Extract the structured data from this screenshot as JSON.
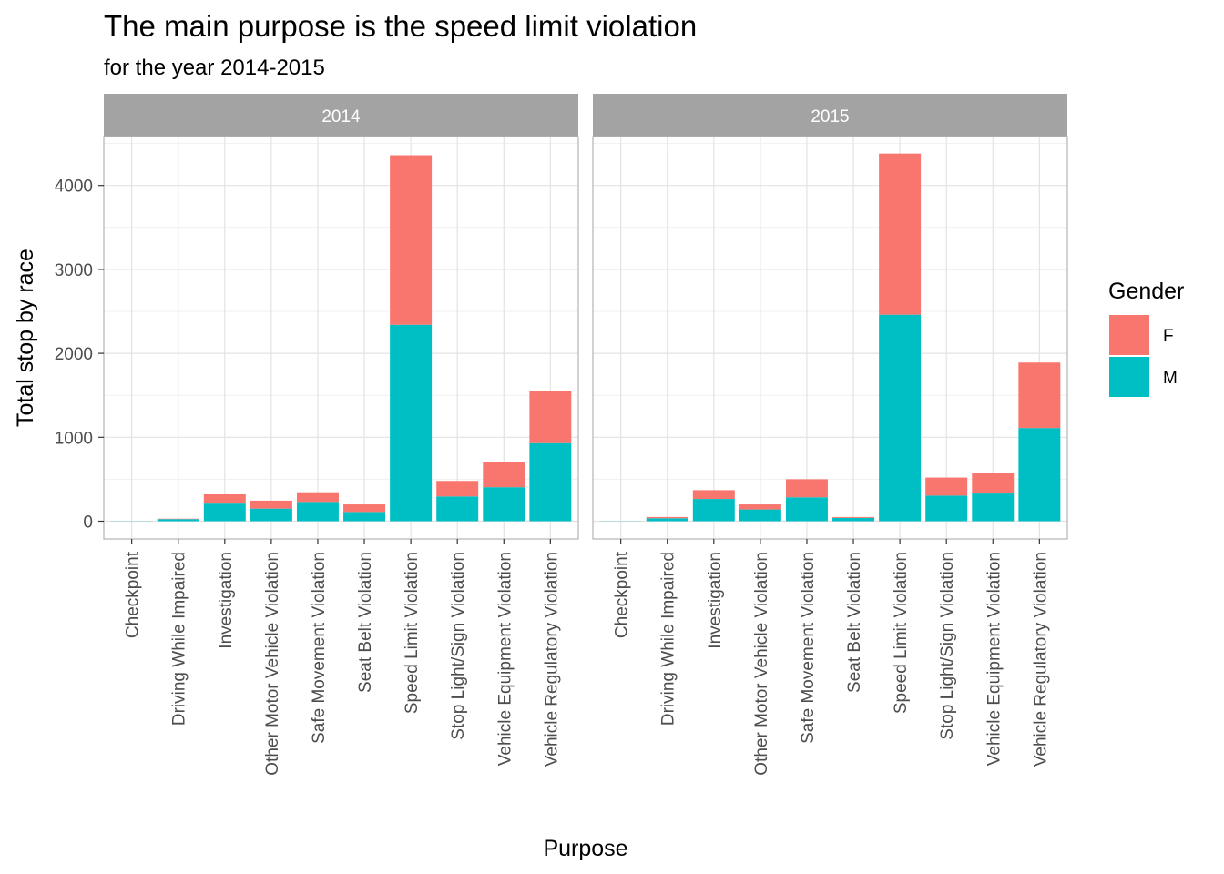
{
  "chart_data": {
    "type": "bar",
    "stacked": true,
    "title": "The main purpose is the speed limit violation",
    "subtitle": "for the year 2014-2015",
    "xlabel": "Purpose",
    "ylabel": "Total stop by race",
    "ylim": [
      -220,
      4600
    ],
    "yticks": [
      0,
      1000,
      2000,
      3000,
      4000
    ],
    "grid": true,
    "legend": {
      "title": "Gender",
      "position": "right",
      "entries": [
        {
          "key": "F",
          "label": "F",
          "color": "#F8766D"
        },
        {
          "key": "M",
          "label": "M",
          "color": "#00BFC4"
        }
      ]
    },
    "categories": [
      "Checkpoint",
      "Driving While Impaired",
      "Investigation",
      "Other Motor Vehicle Violation",
      "Safe Movement Violation",
      "Seat Belt Violation",
      "Speed Limit Violation",
      "Stop Light/Sign Violation",
      "Vehicle Equipment Violation",
      "Vehicle Regulatory Violation"
    ],
    "facets": [
      {
        "label": "2014",
        "series": [
          {
            "name": "M",
            "values": [
              2,
              25,
              210,
              150,
              230,
              110,
              2340,
              295,
              405,
              930
            ]
          },
          {
            "name": "F",
            "values": [
              0,
              5,
              110,
              95,
              115,
              90,
              2020,
              185,
              305,
              625
            ]
          }
        ]
      },
      {
        "label": "2015",
        "series": [
          {
            "name": "M",
            "values": [
              2,
              35,
              265,
              140,
              285,
              40,
              2460,
              305,
              330,
              1110
            ]
          },
          {
            "name": "F",
            "values": [
              0,
              15,
              105,
              60,
              215,
              10,
              1920,
              215,
              240,
              780
            ]
          }
        ]
      }
    ]
  }
}
